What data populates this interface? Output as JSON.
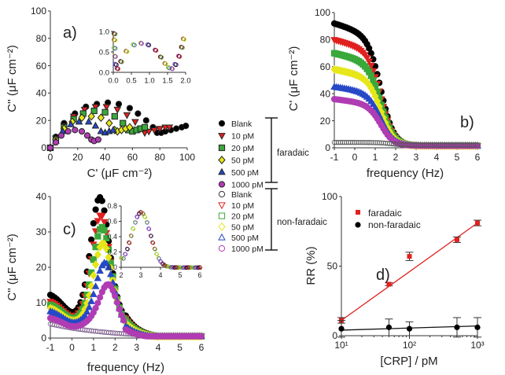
{
  "colors": {
    "Blank": "#000000",
    "10 pM": "#e0211f",
    "20 pM": "#3aa83a",
    "50 pM": "#e6e619",
    "500 pM": "#2749c7",
    "1000 pM": "#b03cb3",
    "faradaic_rr": "#e0211f",
    "fit_line": "#e0211f"
  },
  "shared_legend": {
    "items": [
      "Blank",
      "10 pM",
      "20 pM",
      "50 pM",
      "500 pM",
      "1000 pM"
    ],
    "faradaic_label": "faradaic",
    "nonfaradaic_label": "non-faradaic",
    "faradaic_marker": "filled",
    "nonfaradaic_marker": "open"
  },
  "chart_data": [
    {
      "id": "a",
      "panel_label": "a)",
      "type": "scatter",
      "xlabel": "C' (μF cm⁻²)",
      "ylabel": "C'' (μF cm⁻²)",
      "xlim": [
        0,
        100
      ],
      "ylim": [
        0,
        100
      ],
      "xticks": [
        0,
        20,
        40,
        60,
        80,
        100
      ],
      "yticks": [
        0,
        20,
        40,
        60,
        80,
        100
      ],
      "series": [
        {
          "name": "Blank",
          "marker": "circle",
          "values": [
            [
              0,
              0
            ],
            [
              4,
              8
            ],
            [
              10,
              18
            ],
            [
              18,
              25
            ],
            [
              26,
              30
            ],
            [
              34,
              32
            ],
            [
              42,
              33
            ],
            [
              50,
              32
            ],
            [
              58,
              29
            ],
            [
              64,
              25
            ],
            [
              70,
              20
            ],
            [
              75,
              15
            ],
            [
              78,
              11
            ],
            [
              81,
              11
            ],
            [
              84,
              12
            ],
            [
              88,
              13
            ],
            [
              92,
              14
            ],
            [
              96,
              15
            ],
            [
              99,
              16
            ]
          ]
        },
        {
          "name": "10 pM",
          "marker": "triangle-down",
          "values": [
            [
              0,
              0
            ],
            [
              4,
              7
            ],
            [
              10,
              16
            ],
            [
              17,
              23
            ],
            [
              25,
              28
            ],
            [
              33,
              30
            ],
            [
              41,
              30
            ],
            [
              49,
              28
            ],
            [
              56,
              24
            ],
            [
              62,
              19
            ],
            [
              66,
              14
            ],
            [
              69,
              11
            ],
            [
              72,
              12
            ],
            [
              76,
              13
            ],
            [
              80,
              14
            ],
            [
              84,
              15
            ],
            [
              87,
              15
            ]
          ]
        },
        {
          "name": "20 pM",
          "marker": "square",
          "values": [
            [
              0,
              0
            ],
            [
              4,
              6
            ],
            [
              10,
              15
            ],
            [
              17,
              21
            ],
            [
              24,
              25
            ],
            [
              32,
              27
            ],
            [
              40,
              26
            ],
            [
              47,
              23
            ],
            [
              53,
              18
            ],
            [
              57,
              13
            ],
            [
              60,
              12
            ],
            [
              63,
              13
            ],
            [
              66,
              14
            ],
            [
              69,
              15
            ]
          ]
        },
        {
          "name": "50 pM",
          "marker": "diamond",
          "values": [
            [
              0,
              0
            ],
            [
              4,
              6
            ],
            [
              10,
              14
            ],
            [
              16,
              19
            ],
            [
              23,
              22
            ],
            [
              30,
              23
            ],
            [
              37,
              22
            ],
            [
              43,
              18
            ],
            [
              47,
              13
            ],
            [
              49,
              12
            ],
            [
              52,
              13
            ],
            [
              55,
              14
            ],
            [
              58,
              15
            ]
          ]
        },
        {
          "name": "500 pM",
          "marker": "triangle-up",
          "values": [
            [
              0,
              0
            ],
            [
              4,
              5
            ],
            [
              9,
              12
            ],
            [
              15,
              17
            ],
            [
              21,
              19
            ],
            [
              28,
              19
            ],
            [
              33,
              16
            ],
            [
              37,
              12
            ],
            [
              40,
              11
            ],
            [
              43,
              12
            ],
            [
              46,
              13
            ]
          ]
        },
        {
          "name": "1000 pM",
          "marker": "circle",
          "values": [
            [
              0,
              0
            ],
            [
              4,
              4
            ],
            [
              8,
              9
            ],
            [
              13,
              12
            ],
            [
              18,
              13
            ],
            [
              23,
              12
            ],
            [
              27,
              9
            ],
            [
              30,
              6
            ],
            [
              32,
              5
            ],
            [
              35,
              6
            ]
          ]
        }
      ],
      "inset": {
        "type": "scatter",
        "xlim": [
          0,
          2
        ],
        "ylim": [
          0,
          1.0
        ],
        "xticks": [
          0.0,
          0.5,
          1.0,
          1.5,
          2.0
        ],
        "xtick_labels": [
          "0.0",
          "0.5",
          "1.0",
          "1.5",
          "2.0"
        ],
        "yticks": [
          0.0,
          0.5,
          1.0
        ],
        "ytick_labels": [
          "0.0",
          "0.5",
          "1.0"
        ],
        "series": [
          {
            "name": "non-faradaic",
            "marker": "open",
            "values": [
              [
                0.02,
                0.95
              ],
              [
                0.02,
                0.8
              ],
              [
                0.02,
                0.6
              ],
              [
                0.03,
                0.4
              ],
              [
                0.05,
                0.2
              ],
              [
                0.1,
                0.1
              ],
              [
                0.2,
                0.27
              ],
              [
                0.35,
                0.52
              ],
              [
                0.55,
                0.68
              ],
              [
                0.75,
                0.72
              ],
              [
                0.95,
                0.68
              ],
              [
                1.15,
                0.55
              ],
              [
                1.3,
                0.38
              ],
              [
                1.42,
                0.22
              ],
              [
                1.52,
                0.12
              ],
              [
                1.6,
                0.1
              ],
              [
                1.7,
                0.2
              ],
              [
                1.8,
                0.4
              ],
              [
                1.88,
                0.62
              ],
              [
                1.93,
                0.82
              ]
            ]
          }
        ]
      }
    },
    {
      "id": "b",
      "panel_label": "b)",
      "type": "scatter",
      "xlabel": "frequency (Hz)",
      "ylabel": "C' (μF cm⁻²)",
      "xlim": [
        -1,
        6
      ],
      "ylim": [
        0,
        100
      ],
      "xticks": [
        -1,
        0,
        1,
        2,
        3,
        4,
        5,
        6
      ],
      "yticks": [
        0,
        20,
        40,
        60,
        80,
        100
      ],
      "series": [
        {
          "name": "Blank",
          "plateau": 92
        },
        {
          "name": "10 pM",
          "plateau": 80
        },
        {
          "name": "20 pM",
          "plateau": 70
        },
        {
          "name": "50 pM",
          "plateau": 58
        },
        {
          "name": "500 pM",
          "plateau": 45
        },
        {
          "name": "1000 pM",
          "plateau": 36
        },
        {
          "name": "non-faradaic",
          "plateau": 4
        }
      ]
    },
    {
      "id": "c",
      "panel_label": "c)",
      "type": "scatter",
      "xlabel": "frequency (Hz)",
      "ylabel": "C'' (μF cm⁻²)",
      "xlim": [
        -1,
        6
      ],
      "ylim": [
        0,
        40
      ],
      "xticks": [
        -1,
        0,
        1,
        2,
        3,
        4,
        5,
        6
      ],
      "yticks": [
        0,
        10,
        20,
        30,
        40
      ],
      "series": [
        {
          "name": "Blank",
          "peak": 34,
          "peak_x": 1.3,
          "base": 13
        },
        {
          "name": "10 pM",
          "peak": 30,
          "peak_x": 1.35,
          "base": 11
        },
        {
          "name": "20 pM",
          "peak": 27,
          "peak_x": 1.4,
          "base": 10
        },
        {
          "name": "50 pM",
          "peak": 23,
          "peak_x": 1.45,
          "base": 9
        },
        {
          "name": "500 pM",
          "peak": 18,
          "peak_x": 1.55,
          "base": 8
        },
        {
          "name": "1000 pM",
          "peak": 13,
          "peak_x": 1.7,
          "base": 6
        }
      ],
      "inset": {
        "type": "scatter",
        "xlim": [
          2,
          6
        ],
        "ylim": [
          0,
          0.8
        ],
        "xticks": [
          2,
          3,
          4,
          5,
          6
        ],
        "yticks": [
          0.0,
          0.2,
          0.4,
          0.6,
          0.8
        ],
        "ytick_labels": [
          "0.0",
          "0.2",
          "0.4",
          "0.6",
          "0.8"
        ],
        "peak": 0.72,
        "peak_x": 3.0
      }
    },
    {
      "id": "d",
      "panel_label": "d)",
      "type": "scatter",
      "xlabel": "[CRP] / pM",
      "ylabel": "RR (%)",
      "xscale": "log",
      "xlim": [
        10,
        1000
      ],
      "ylim": [
        0,
        100
      ],
      "xtick_labels": [
        "10¹",
        "10²",
        "10³"
      ],
      "yticks": [
        0,
        50,
        100
      ],
      "legend_position": "top-left",
      "series": [
        {
          "name": "faradaic",
          "x": [
            10,
            50,
            100,
            500,
            1000
          ],
          "values": [
            11,
            37,
            57,
            69,
            81
          ],
          "err": [
            2,
            1,
            3,
            2,
            2
          ]
        },
        {
          "name": "non-faradaic",
          "x": [
            10,
            50,
            100,
            500,
            1000
          ],
          "values": [
            5,
            6,
            5,
            6,
            6
          ],
          "err": [
            6,
            6,
            5,
            7,
            7
          ]
        }
      ],
      "fits": [
        {
          "series": "faradaic",
          "from": [
            10,
            11
          ],
          "to": [
            1000,
            81
          ]
        },
        {
          "series": "non-faradaic",
          "from": [
            10,
            4
          ],
          "to": [
            1000,
            7
          ]
        }
      ]
    }
  ]
}
